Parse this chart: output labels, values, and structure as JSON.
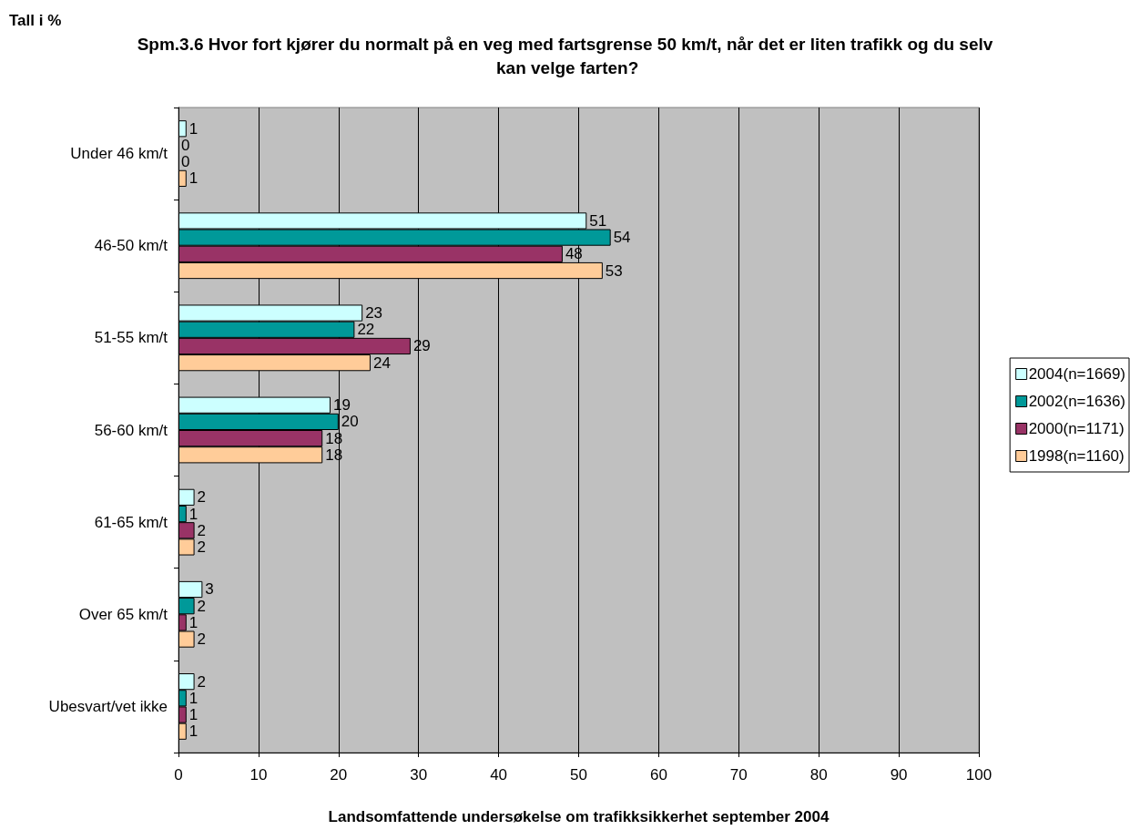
{
  "chart_data": {
    "type": "bar",
    "orientation": "horizontal",
    "title": "Spm.3.6 Hvor fort kjører du normalt på en veg med fartsgrense 50 km/t, når det er liten trafikk og du selv kan velge farten?",
    "annotations": [
      "Tall i %"
    ],
    "xlabel": "Landsomfattende undersøkelse om trafikksikkerhet september 2004",
    "categories": [
      "Under 46 km/t",
      "46-50 km/t",
      "51-55 km/t",
      "56-60 km/t",
      "61-65 km/t",
      "Over 65 km/t",
      "Ubesvart/vet ikke"
    ],
    "series": [
      {
        "name": "2004(n=1669)",
        "color": "#ccffff",
        "values": [
          1,
          51,
          23,
          19,
          2,
          3,
          2
        ]
      },
      {
        "name": "2002(n=1636)",
        "color": "#009999",
        "values": [
          0,
          54,
          22,
          20,
          1,
          2,
          1
        ]
      },
      {
        "name": "2000(n=1171)",
        "color": "#993366",
        "values": [
          0,
          48,
          29,
          18,
          2,
          1,
          1
        ]
      },
      {
        "name": "1998(n=1160)",
        "color": "#ffcc99",
        "values": [
          1,
          53,
          24,
          18,
          2,
          2,
          1
        ]
      }
    ],
    "xlim": [
      0,
      100
    ],
    "xticks": [
      0,
      10,
      20,
      30,
      40,
      50,
      60,
      70,
      80,
      90,
      100
    ],
    "grid": "x",
    "legend": "right",
    "data_labels": true
  }
}
